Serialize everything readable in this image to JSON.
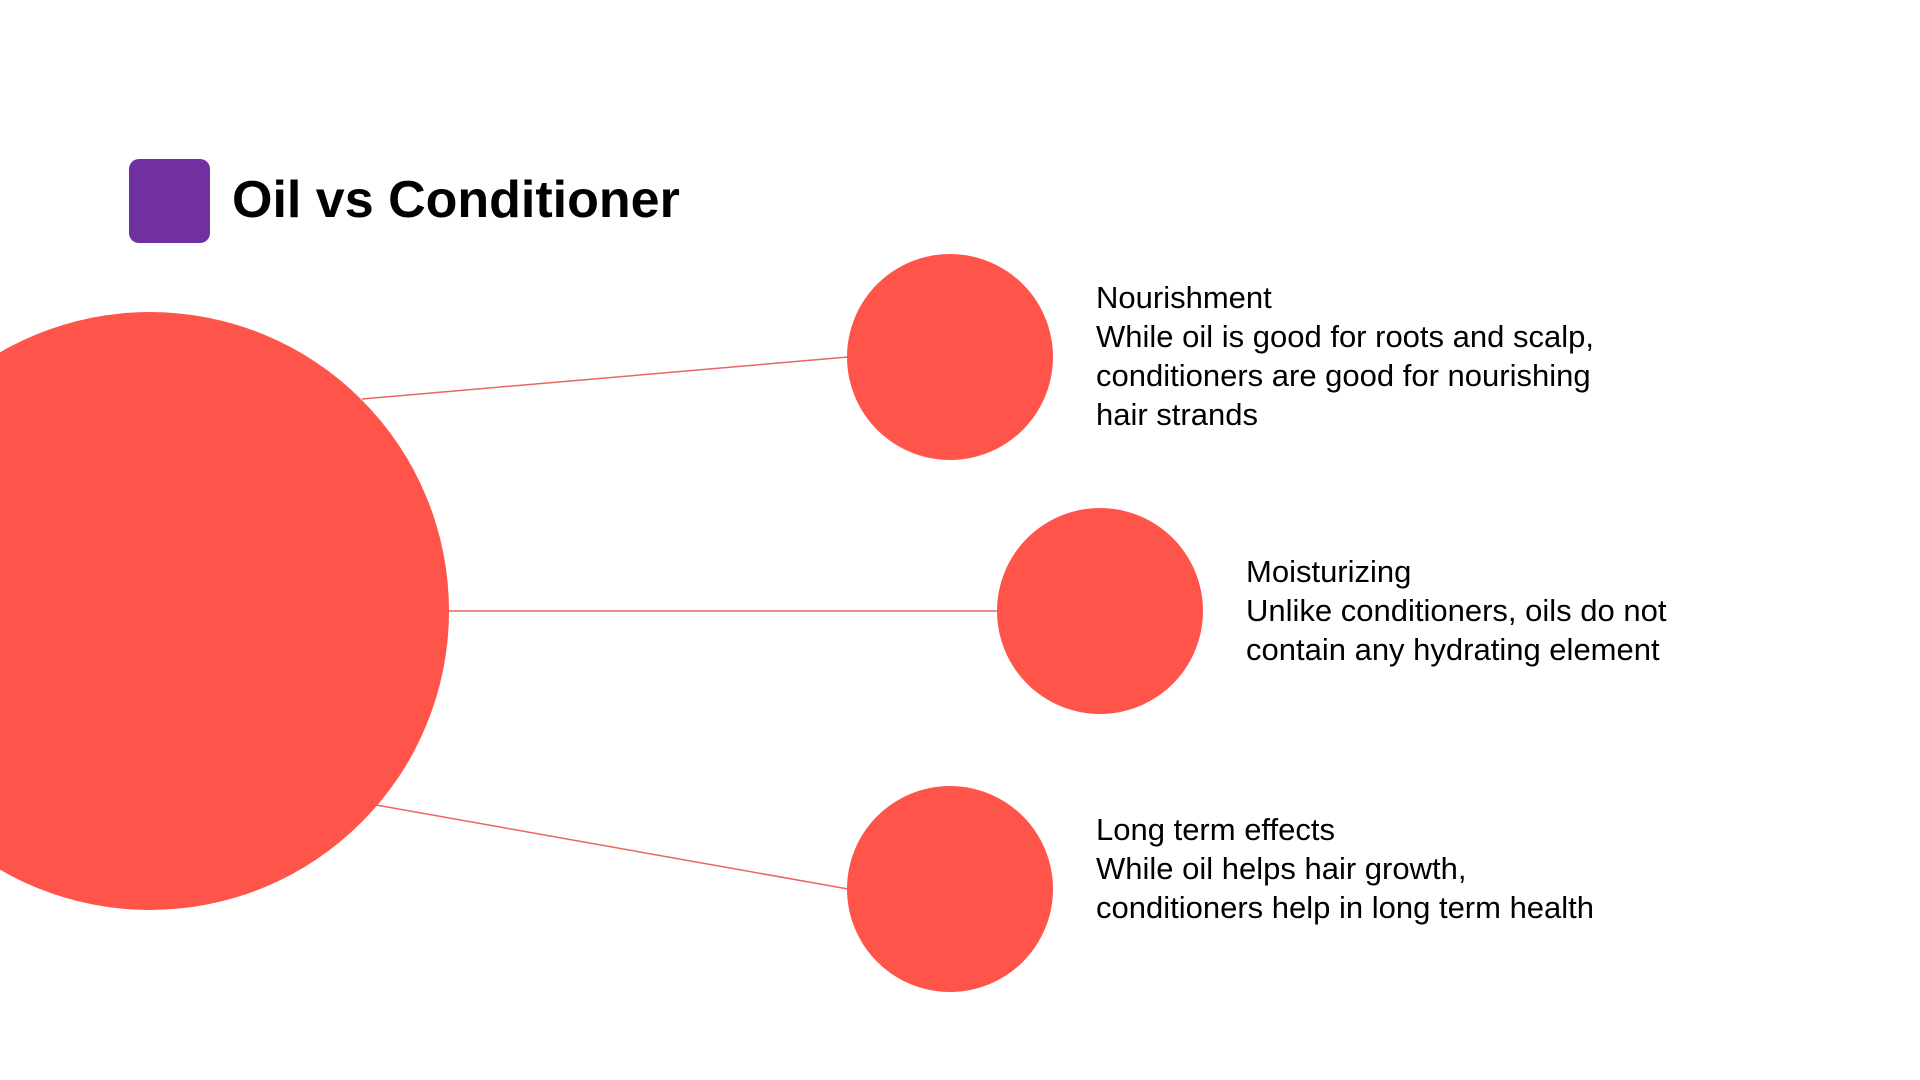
{
  "title": "Oil vs Conditioner",
  "colors": {
    "accent_square": "#7030A0",
    "circle": "#FF544A",
    "connector": "#E8675E"
  },
  "items": [
    {
      "heading": "Nourishment",
      "description": "While oil is good for roots and scalp, conditioners are good for nourishing hair strands"
    },
    {
      "heading": "Moisturizing",
      "description": "Unlike conditioners, oils do not contain any hydrating element"
    },
    {
      "heading": "Long term effects",
      "description": "While oil helps hair growth, conditioners help in long term health"
    }
  ]
}
